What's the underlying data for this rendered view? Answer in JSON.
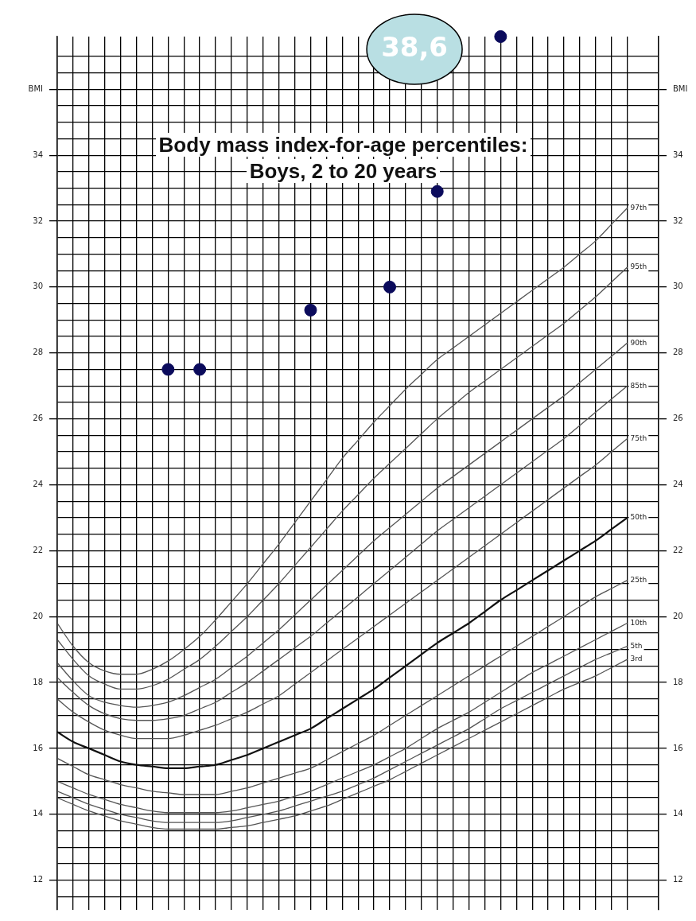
{
  "chart_data": {
    "type": "line",
    "title": "Body mass index-for-age percentiles:",
    "subtitle": "Boys, 2 to 20 years",
    "categories": [
      null,
      null,
      null,
      null,
      null,
      null,
      null,
      null,
      null,
      null,
      null,
      null,
      null,
      null,
      null,
      null,
      null,
      null,
      null,
      null,
      null,
      null,
      null,
      null,
      null,
      null,
      null,
      null,
      null,
      null,
      null,
      null,
      null,
      null,
      null,
      null,
      null
    ],
    "series": [
      {
        "name": "97th",
        "color": "#555555",
        "values": [
          19.8,
          19.1,
          18.6,
          18.35,
          18.25,
          18.25,
          18.4,
          18.65,
          19.0,
          19.4,
          19.9,
          20.45,
          21.0,
          21.6,
          22.2,
          22.85,
          23.5,
          24.15,
          24.8,
          25.35,
          25.9,
          26.4,
          26.9,
          27.35,
          27.8,
          28.15,
          28.5,
          28.85,
          29.2,
          29.55,
          29.9,
          30.25,
          30.6,
          31.0,
          31.4,
          31.9,
          32.4
        ]
      },
      {
        "name": "95th",
        "color": "#555555",
        "values": [
          19.3,
          18.7,
          18.2,
          17.95,
          17.8,
          17.8,
          17.9,
          18.1,
          18.4,
          18.7,
          19.1,
          19.55,
          20.0,
          20.5,
          21.0,
          21.55,
          22.1,
          22.65,
          23.2,
          23.7,
          24.2,
          24.65,
          25.1,
          25.55,
          26.0,
          26.4,
          26.8,
          27.15,
          27.5,
          27.85,
          28.2,
          28.55,
          28.9,
          29.3,
          29.7,
          30.15,
          30.6
        ]
      },
      {
        "name": "90th",
        "color": "#555555",
        "values": [
          18.6,
          18.05,
          17.6,
          17.4,
          17.3,
          17.25,
          17.3,
          17.4,
          17.6,
          17.85,
          18.1,
          18.45,
          18.8,
          19.2,
          19.6,
          20.05,
          20.5,
          20.95,
          21.4,
          21.85,
          22.3,
          22.7,
          23.1,
          23.5,
          23.9,
          24.25,
          24.6,
          24.95,
          25.3,
          25.65,
          26.0,
          26.35,
          26.7,
          27.1,
          27.5,
          27.9,
          28.3
        ]
      },
      {
        "name": "85th",
        "color": "#555555",
        "values": [
          18.15,
          17.7,
          17.3,
          17.05,
          16.9,
          16.85,
          16.85,
          16.9,
          17.0,
          17.2,
          17.4,
          17.7,
          18.0,
          18.35,
          18.7,
          19.05,
          19.4,
          19.8,
          20.2,
          20.6,
          21.0,
          21.4,
          21.8,
          22.2,
          22.6,
          22.95,
          23.3,
          23.65,
          24.0,
          24.35,
          24.7,
          25.05,
          25.4,
          25.8,
          26.2,
          26.6,
          27.0
        ]
      },
      {
        "name": "75th",
        "color": "#555555",
        "values": [
          17.5,
          17.1,
          16.8,
          16.55,
          16.4,
          16.3,
          16.3,
          16.3,
          16.4,
          16.55,
          16.7,
          16.9,
          17.1,
          17.35,
          17.6,
          17.95,
          18.3,
          18.65,
          19.0,
          19.35,
          19.7,
          20.05,
          20.4,
          20.75,
          21.1,
          21.45,
          21.8,
          22.15,
          22.5,
          22.85,
          23.2,
          23.55,
          23.9,
          24.25,
          24.6,
          25.0,
          25.4
        ]
      },
      {
        "name": "50th",
        "color": "#111111",
        "values": [
          16.5,
          16.2,
          16.0,
          15.8,
          15.6,
          15.5,
          15.45,
          15.4,
          15.4,
          15.45,
          15.5,
          15.65,
          15.8,
          16.0,
          16.2,
          16.4,
          16.6,
          16.9,
          17.2,
          17.5,
          17.8,
          18.15,
          18.5,
          18.85,
          19.2,
          19.5,
          19.8,
          20.15,
          20.5,
          20.8,
          21.1,
          21.4,
          21.7,
          22.0,
          22.3,
          22.65,
          23.0
        ]
      },
      {
        "name": "25th",
        "color": "#555555",
        "values": [
          15.7,
          15.45,
          15.2,
          15.05,
          14.9,
          14.8,
          14.7,
          14.65,
          14.6,
          14.6,
          14.6,
          14.7,
          14.8,
          14.95,
          15.1,
          15.25,
          15.4,
          15.65,
          15.9,
          16.15,
          16.4,
          16.7,
          17.0,
          17.3,
          17.6,
          17.9,
          18.2,
          18.5,
          18.8,
          19.1,
          19.4,
          19.7,
          20.0,
          20.3,
          20.6,
          20.85,
          21.1
        ]
      },
      {
        "name": "10th",
        "color": "#555555",
        "values": [
          15.0,
          14.8,
          14.6,
          14.45,
          14.3,
          14.2,
          14.1,
          14.05,
          14.05,
          14.05,
          14.05,
          14.1,
          14.2,
          14.3,
          14.4,
          14.55,
          14.7,
          14.9,
          15.1,
          15.3,
          15.5,
          15.75,
          16.0,
          16.3,
          16.6,
          16.85,
          17.1,
          17.4,
          17.7,
          18.0,
          18.3,
          18.55,
          18.8,
          19.05,
          19.3,
          19.55,
          19.8
        ]
      },
      {
        "name": "5th",
        "color": "#555555",
        "values": [
          14.7,
          14.5,
          14.3,
          14.15,
          14.0,
          13.9,
          13.8,
          13.75,
          13.75,
          13.75,
          13.75,
          13.8,
          13.9,
          14.0,
          14.1,
          14.25,
          14.4,
          14.55,
          14.7,
          14.9,
          15.1,
          15.35,
          15.6,
          15.85,
          16.1,
          16.35,
          16.6,
          16.9,
          17.2,
          17.45,
          17.7,
          17.95,
          18.2,
          18.45,
          18.7,
          18.9,
          19.1
        ]
      },
      {
        "name": "3rd",
        "color": "#555555",
        "values": [
          14.5,
          14.3,
          14.1,
          13.95,
          13.8,
          13.7,
          13.6,
          13.55,
          13.55,
          13.55,
          13.55,
          13.6,
          13.65,
          13.75,
          13.85,
          13.95,
          14.1,
          14.25,
          14.45,
          14.65,
          14.85,
          15.05,
          15.3,
          15.55,
          15.8,
          16.05,
          16.3,
          16.55,
          16.8,
          17.05,
          17.3,
          17.55,
          17.8,
          18.0,
          18.2,
          18.45,
          18.7
        ]
      },
      {
        "type": "scatter",
        "color": "#0b0b5c",
        "marker": "circle",
        "values": [
          null,
          null,
          null,
          null,
          null,
          null,
          null,
          27.5,
          null,
          27.5,
          null,
          null,
          null,
          null,
          null,
          null,
          29.3,
          null,
          null,
          null,
          null,
          30.0,
          null,
          null,
          32.9,
          null,
          null,
          null,
          37.6,
          null,
          null,
          null,
          null,
          null,
          null,
          null,
          null
        ]
      }
    ],
    "ylim": [
      11.1,
      37.6
    ],
    "yticks": [
      {
        "value": 11.5,
        "label": null
      },
      12,
      {
        "value": 12.5,
        "label": null
      },
      {
        "value": 13,
        "label": null
      },
      {
        "value": 13.5,
        "label": null
      },
      14,
      {
        "value": 14.5,
        "label": null
      },
      {
        "value": 15,
        "label": null
      },
      {
        "value": 15.5,
        "label": null
      },
      16,
      {
        "value": 16.5,
        "label": null
      },
      {
        "value": 17,
        "label": null
      },
      {
        "value": 17.5,
        "label": null
      },
      18,
      {
        "value": 18.5,
        "label": null
      },
      {
        "value": 19,
        "label": null
      },
      {
        "value": 19.5,
        "label": null
      },
      20,
      {
        "value": 20.5,
        "label": null
      },
      {
        "value": 21,
        "label": null
      },
      {
        "value": 21.5,
        "label": null
      },
      22,
      {
        "value": 22.5,
        "label": null
      },
      {
        "value": 23,
        "label": null
      },
      {
        "value": 23.5,
        "label": null
      },
      24,
      {
        "value": 24.5,
        "label": null
      },
      {
        "value": 25,
        "label": null
      },
      {
        "value": 25.5,
        "label": null
      },
      26,
      {
        "value": 26.5,
        "label": null
      },
      {
        "value": 27,
        "label": null
      },
      {
        "value": 27.5,
        "label": null
      },
      28,
      {
        "value": 28.5,
        "label": null
      },
      {
        "value": 29,
        "label": null
      },
      {
        "value": 29.5,
        "label": null
      },
      30,
      {
        "value": 30.5,
        "label": null
      },
      {
        "value": 31,
        "label": null
      },
      {
        "value": 31.5,
        "label": null
      },
      32,
      {
        "value": 32.5,
        "label": null
      },
      {
        "value": 33,
        "label": null
      },
      {
        "value": 33.5,
        "label": null
      },
      34,
      {
        "value": 34.5,
        "label": null
      },
      {
        "value": 35,
        "label": null
      },
      {
        "value": 35.5,
        "label": null
      },
      {
        "value": 36,
        "label": "BMI"
      },
      {
        "value": 36.5,
        "label": null
      },
      {
        "value": 37,
        "label": null
      }
    ],
    "y2lim": [
      11.1,
      37.6
    ],
    "y2ticks": [
      12,
      14,
      16,
      18,
      20,
      22,
      24,
      26,
      28,
      30,
      32,
      34,
      {
        "value": 36,
        "label": "BMI"
      }
    ],
    "grid": true,
    "legend": false,
    "line_style": "solid",
    "annotations": [
      "38,6"
    ]
  }
}
